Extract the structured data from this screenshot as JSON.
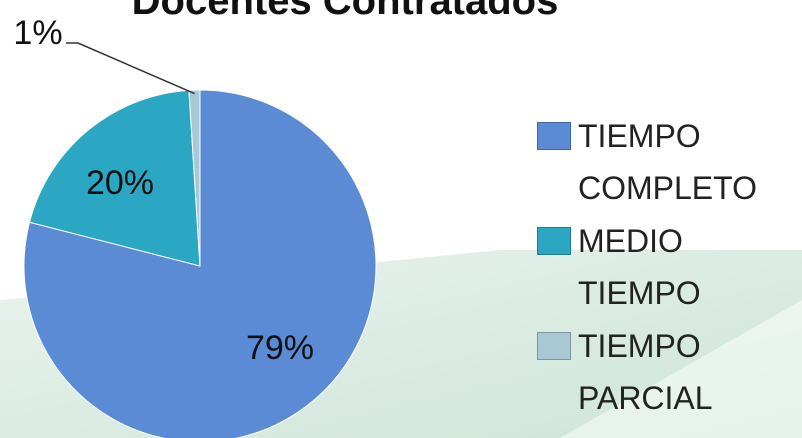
{
  "chart_data": {
    "type": "pie",
    "title": "Docentes Contratados",
    "categories": [
      "TIEMPO COMPLETO",
      "MEDIO TIEMPO",
      "TIEMPO PARCIAL"
    ],
    "values": [
      79,
      20,
      1
    ],
    "value_labels": [
      "79%",
      "20%",
      "1%"
    ],
    "colors": [
      "#5a8bd4",
      "#2ba7c3",
      "#a9c8d6"
    ],
    "legend": "right"
  }
}
